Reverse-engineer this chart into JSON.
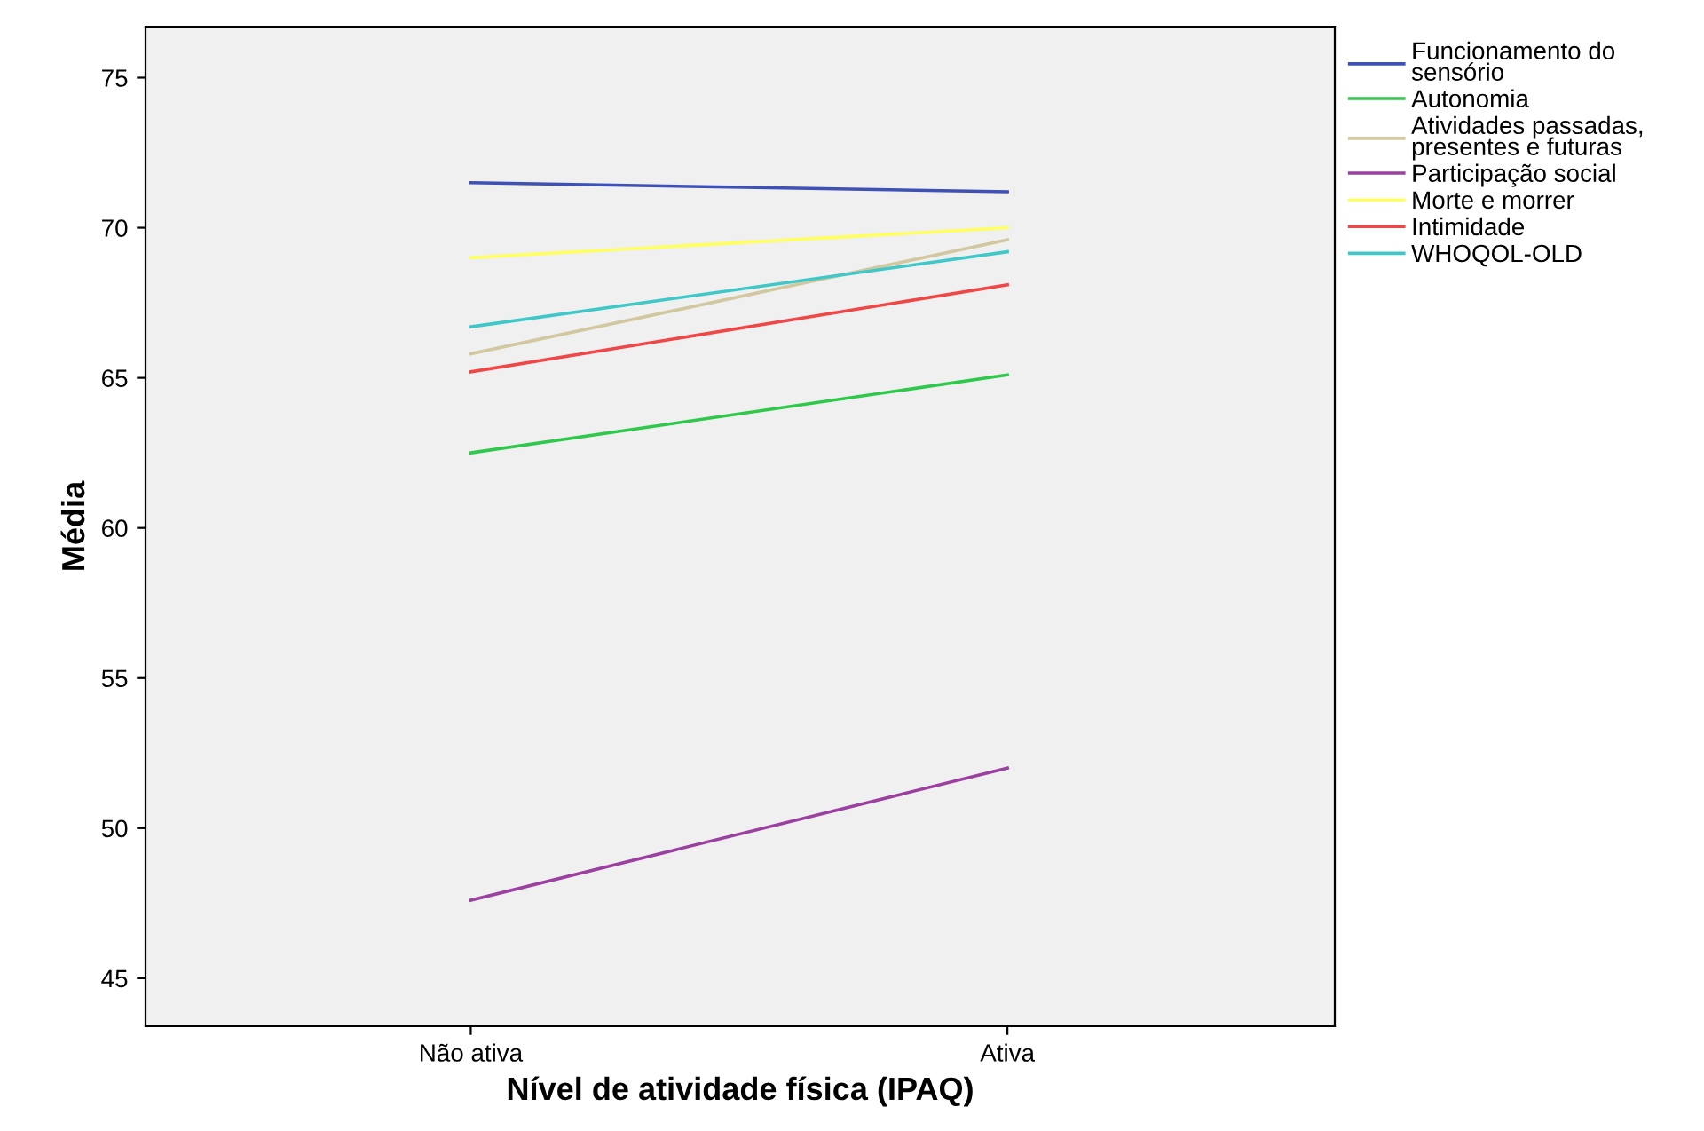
{
  "chart_data": {
    "type": "line",
    "xlabel": "Nível de atividade física (IPAQ)",
    "ylabel": "Média",
    "categories": [
      "Não ativa",
      "Ativa"
    ],
    "series": [
      {
        "name": "Funcionamento do sensório",
        "color": "#3f51b5",
        "values": [
          71.5,
          71.2
        ]
      },
      {
        "name": "Autonomia",
        "color": "#2ec84a",
        "values": [
          62.5,
          65.1
        ]
      },
      {
        "name": "Atividades passadas, presentes e futuras",
        "color": "#d2c8a0",
        "values": [
          65.8,
          69.6
        ]
      },
      {
        "name": "Participação social",
        "color": "#9b3fa0",
        "values": [
          47.6,
          52.0
        ]
      },
      {
        "name": "Morte e morrer",
        "color": "#ffff60",
        "values": [
          69.0,
          70.0
        ]
      },
      {
        "name": "Intimidade",
        "color": "#f04646",
        "values": [
          65.2,
          68.1
        ]
      },
      {
        "name": "WHOQOL-OLD",
        "color": "#40c8c8",
        "values": [
          66.7,
          69.2
        ]
      }
    ],
    "ylim": [
      43.4,
      76.7
    ],
    "yticks": [
      45,
      50,
      55,
      60,
      65,
      70,
      75
    ],
    "legend": "top right",
    "marker": "none"
  }
}
